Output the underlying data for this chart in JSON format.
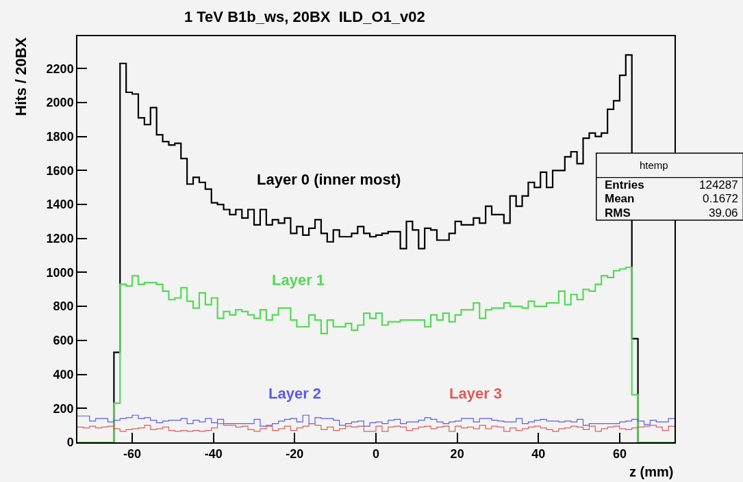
{
  "chart_data": {
    "type": "histogram",
    "title": "1 TeV B1b_ws, 20BX  ILD_O1_v02",
    "xlabel": "z (mm)",
    "ylabel": "Hits / 20BX",
    "bins": [
      -73.5,
      -72,
      -70.5,
      -69,
      -67.5,
      -66,
      -64.5,
      -63,
      -61.5,
      -60,
      -58.5,
      -57,
      -55.5,
      -54,
      -52.5,
      -51,
      -49.5,
      -48,
      -46.5,
      -45,
      -43.5,
      -42,
      -40.5,
      -39,
      -37.5,
      -36,
      -34.5,
      -33,
      -31.5,
      -30,
      -28.5,
      -27,
      -25.5,
      -24,
      -22.5,
      -21,
      -19.5,
      -18,
      -16.5,
      -15,
      -13.5,
      -12,
      -10.5,
      -9,
      -7.5,
      -6,
      -4.5,
      -3,
      -1.5,
      0,
      1.5,
      3,
      4.5,
      6,
      7.5,
      9,
      10.5,
      12,
      13.5,
      15,
      16.5,
      18,
      19.5,
      21,
      22.5,
      24,
      25.5,
      27,
      28.5,
      30,
      31.5,
      33,
      34.5,
      36,
      37.5,
      39,
      40.5,
      42,
      43.5,
      45,
      46.5,
      48,
      49.5,
      51,
      52.5,
      54,
      55.5,
      57,
      58.5,
      60,
      61.5,
      63,
      64.5,
      66,
      67.5,
      69,
      70.5,
      72,
      73.5
    ],
    "series": [
      {
        "name": "Layer 0 (inner most)",
        "color": "#000000",
        "values": [
          0,
          0,
          0,
          0,
          0,
          0,
          530,
          2230,
          2060,
          2050,
          1910,
          1870,
          1970,
          1810,
          1770,
          1750,
          1760,
          1670,
          1520,
          1560,
          1530,
          1490,
          1410,
          1400,
          1370,
          1340,
          1370,
          1320,
          1370,
          1280,
          1370,
          1280,
          1310,
          1290,
          1320,
          1230,
          1270,
          1220,
          1260,
          1310,
          1230,
          1180,
          1250,
          1210,
          1210,
          1230,
          1270,
          1230,
          1210,
          1220,
          1230,
          1240,
          1240,
          1140,
          1300,
          1250,
          1140,
          1260,
          1250,
          1190,
          1190,
          1230,
          1300,
          1280,
          1280,
          1320,
          1290,
          1390,
          1340,
          1340,
          1290,
          1450,
          1390,
          1450,
          1530,
          1500,
          1590,
          1500,
          1600,
          1600,
          1680,
          1710,
          1640,
          1790,
          1820,
          1800,
          1820,
          1960,
          2010,
          2160,
          2280,
          610,
          0,
          0,
          0,
          0,
          0,
          0
        ]
      },
      {
        "name": "Layer 1",
        "color": "#55d955",
        "values": [
          0,
          0,
          0,
          0,
          0,
          0,
          230,
          930,
          920,
          980,
          930,
          940,
          940,
          930,
          890,
          840,
          850,
          910,
          830,
          790,
          880,
          810,
          850,
          730,
          770,
          750,
          780,
          770,
          750,
          730,
          780,
          720,
          750,
          790,
          790,
          720,
          680,
          680,
          750,
          720,
          640,
          720,
          680,
          680,
          700,
          660,
          690,
          760,
          730,
          760,
          690,
          710,
          710,
          720,
          720,
          720,
          720,
          680,
          750,
          720,
          760,
          710,
          750,
          780,
          780,
          820,
          730,
          780,
          790,
          790,
          820,
          800,
          800,
          790,
          830,
          800,
          800,
          820,
          820,
          890,
          810,
          870,
          840,
          900,
          890,
          930,
          980,
          970,
          1010,
          1020,
          1030,
          280,
          0,
          0,
          0,
          0,
          0,
          0
        ]
      },
      {
        "name": "Layer 2",
        "color": "#5a5aee",
        "values": [
          155,
          155,
          125,
          140,
          140,
          120,
          130,
          140,
          145,
          160,
          140,
          145,
          130,
          115,
          125,
          130,
          130,
          140,
          110,
          130,
          120,
          140,
          115,
          135,
          110,
          110,
          110,
          110,
          110,
          135,
          95,
          100,
          110,
          125,
          135,
          140,
          120,
          160,
          110,
          145,
          140,
          140,
          130,
          100,
          110,
          120,
          125,
          95,
          115,
          120,
          110,
          130,
          135,
          110,
          120,
          120,
          130,
          145,
          135,
          120,
          110,
          120,
          125,
          140,
          140,
          120,
          140,
          140,
          130,
          125,
          120,
          120,
          140,
          110,
          120,
          130,
          135,
          125,
          125,
          120,
          125,
          120,
          135,
          100,
          110,
          110,
          110,
          110,
          110,
          120,
          125,
          135,
          125,
          105,
          130,
          120,
          120,
          140
        ]
      },
      {
        "name": "Layer 3",
        "color": "#e05a5a",
        "values": [
          90,
          85,
          95,
          85,
          90,
          95,
          80,
          65,
          75,
          80,
          85,
          100,
          75,
          80,
          90,
          70,
          65,
          70,
          65,
          70,
          65,
          70,
          85,
          110,
          100,
          100,
          90,
          95,
          75,
          65,
          80,
          95,
          70,
          80,
          95,
          70,
          85,
          95,
          110,
          100,
          75,
          90,
          70,
          80,
          95,
          90,
          95,
          65,
          65,
          95,
          65,
          90,
          95,
          90,
          70,
          80,
          90,
          95,
          80,
          90,
          95,
          65,
          95,
          85,
          90,
          80,
          100,
          80,
          95,
          90,
          65,
          85,
          70,
          80,
          90,
          95,
          85,
          75,
          65,
          80,
          85,
          95,
          90,
          75,
          95,
          65,
          80,
          90,
          95,
          80,
          75,
          85,
          90,
          95,
          100,
          90,
          70,
          95
        ]
      }
    ],
    "xlim": [
      -73.5,
      73.5
    ],
    "xticks": [
      -60,
      -40,
      -20,
      0,
      20,
      40,
      60
    ],
    "ylim": [
      0,
      2390
    ],
    "yticks": [
      0,
      200,
      400,
      600,
      800,
      1000,
      1200,
      1400,
      1600,
      1800,
      2000,
      2200
    ],
    "annotations": [
      "htemp",
      "Entries",
      "124287",
      "Mean",
      "0.1672",
      "RMS",
      "39.06"
    ]
  }
}
